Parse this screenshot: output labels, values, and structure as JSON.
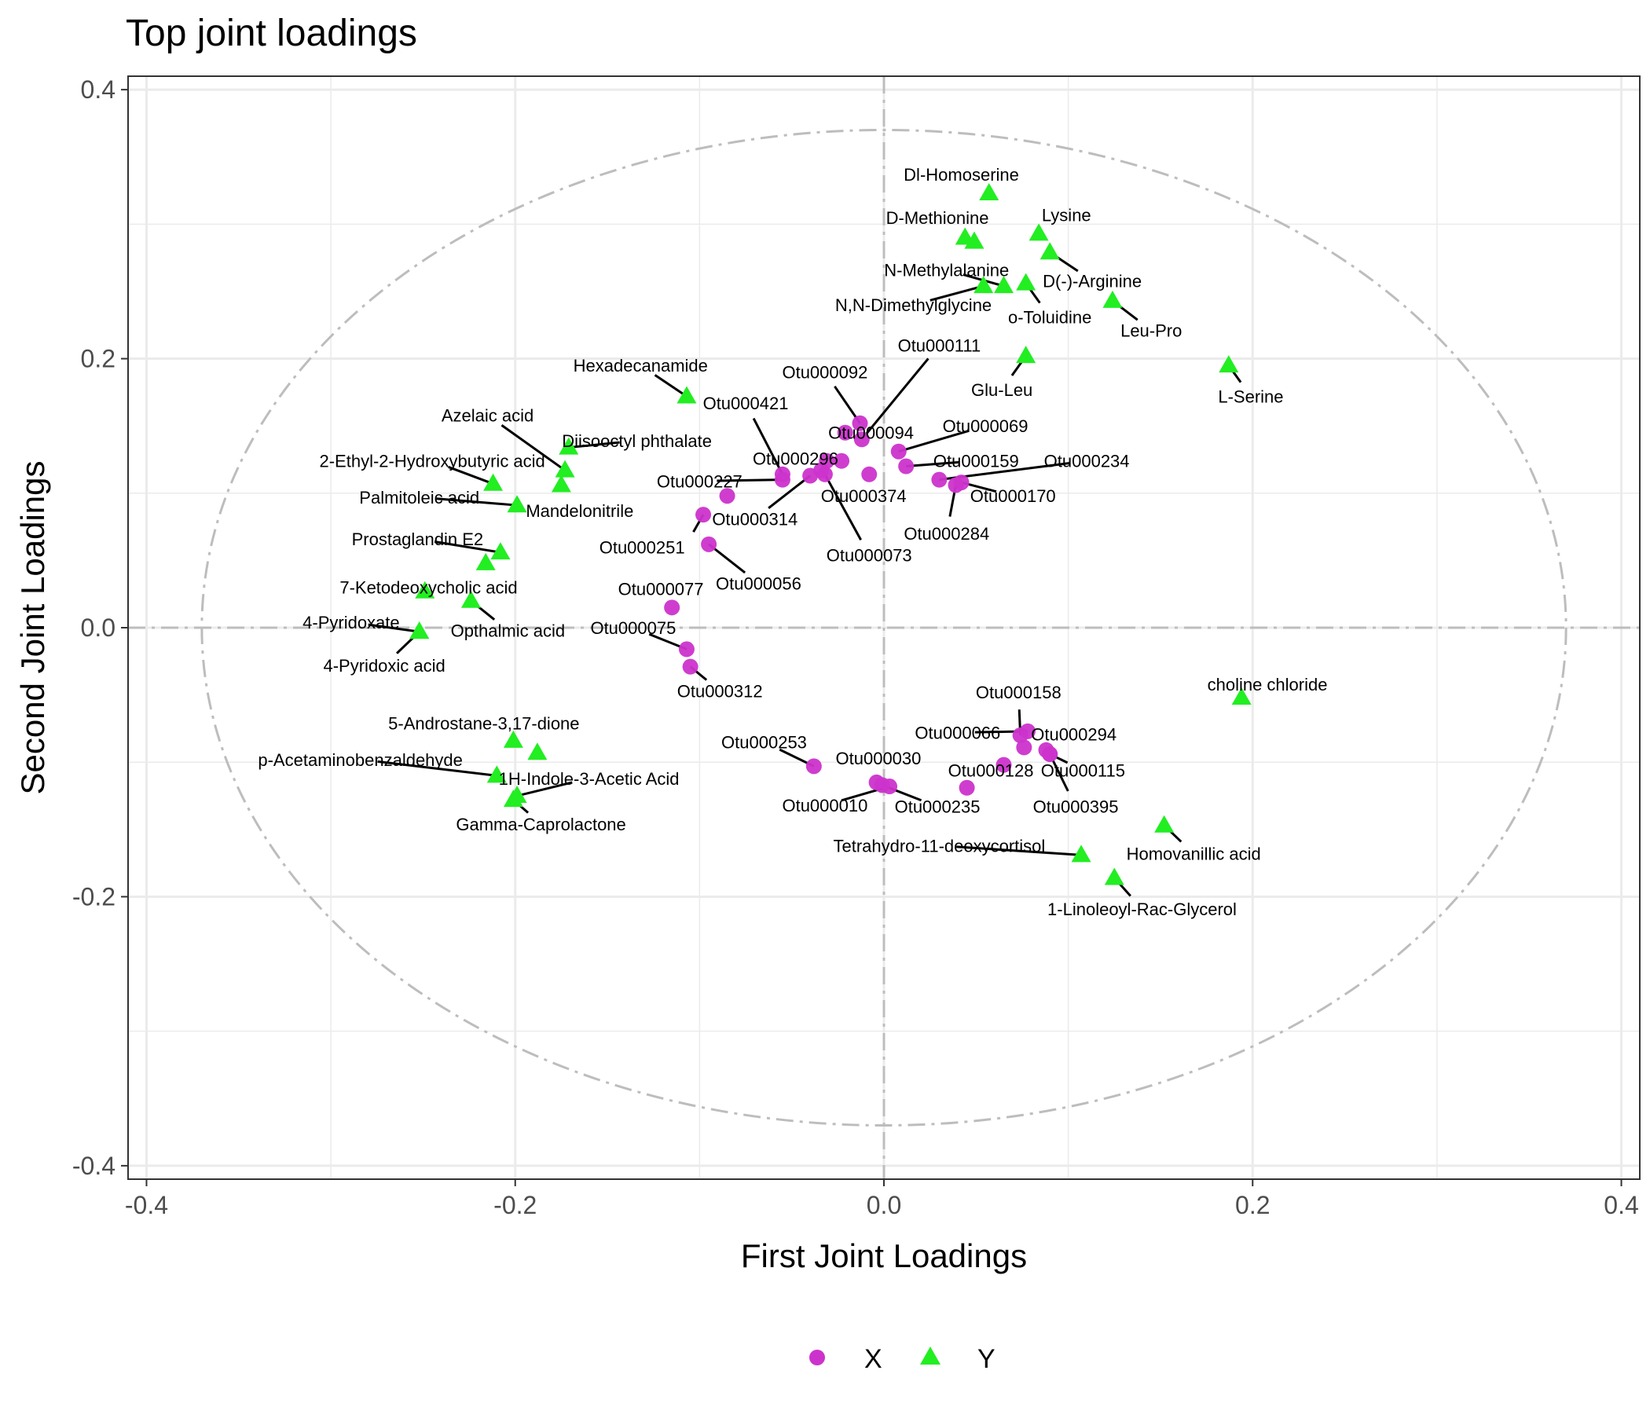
{
  "chart_data": {
    "type": "scatter",
    "title": "Top joint loadings",
    "xlabel": "First Joint Loadings",
    "ylabel": "Second Joint Loadings",
    "xlim": [
      -0.4,
      0.4
    ],
    "ylim": [
      -0.4,
      0.4
    ],
    "x_ticks": [
      {
        "value": -0.4,
        "label": "-0.4"
      },
      {
        "value": -0.2,
        "label": "-0.2"
      },
      {
        "value": 0.0,
        "label": "0.0"
      },
      {
        "value": 0.2,
        "label": "0.2"
      },
      {
        "value": 0.4,
        "label": "0.4"
      }
    ],
    "y_ticks": [
      {
        "value": 0.4,
        "label": "0.4"
      },
      {
        "value": 0.2,
        "label": "0.2"
      },
      {
        "value": 0.0,
        "label": "0.0"
      },
      {
        "value": -0.2,
        "label": "-0.2"
      },
      {
        "value": -0.4,
        "label": "-0.4"
      }
    ],
    "grid": true,
    "legend_position": "bottom",
    "circle_radius": 0.37,
    "colors": {
      "X": "#cc33cc",
      "Y": "#22ee22",
      "grid": "#ebebeb",
      "guide": "#bdbdbd"
    },
    "series": [
      {
        "name": "X",
        "marker": "circle",
        "color": "#cc33cc",
        "points": [
          {
            "x": -0.085,
            "y": 0.098
          },
          {
            "x": -0.098,
            "y": 0.084,
            "label": "Otu000251",
            "lx": -0.108,
            "ly": 0.06,
            "anchor": "end"
          },
          {
            "x": -0.095,
            "y": 0.062,
            "label": "Otu000056",
            "lx": -0.068,
            "ly": 0.033,
            "anchor": "middle"
          },
          {
            "x": -0.115,
            "y": 0.015,
            "label": "Otu000077",
            "lx": -0.121,
            "ly": 0.029,
            "anchor": "middle"
          },
          {
            "x": -0.107,
            "y": -0.016,
            "label": "Otu000075",
            "lx": -0.136,
            "ly": 0.0,
            "anchor": "middle"
          },
          {
            "x": -0.105,
            "y": -0.029,
            "label": "Otu000312",
            "lx": -0.089,
            "ly": -0.047,
            "anchor": "middle"
          },
          {
            "x": -0.055,
            "y": 0.114,
            "label": "Otu000421",
            "lx": -0.075,
            "ly": 0.167,
            "anchor": "middle"
          },
          {
            "x": -0.04,
            "y": 0.113,
            "label": "Otu000314",
            "lx": -0.07,
            "ly": 0.081,
            "anchor": "middle"
          },
          {
            "x": -0.034,
            "y": 0.117,
            "label": "Otu000296",
            "lx": -0.048,
            "ly": 0.126,
            "anchor": "middle"
          },
          {
            "x": -0.031,
            "y": 0.124
          },
          {
            "x": -0.023,
            "y": 0.124
          },
          {
            "x": -0.032,
            "y": 0.114,
            "label": "Otu000073",
            "lx": -0.008,
            "ly": 0.054,
            "anchor": "middle"
          },
          {
            "x": -0.013,
            "y": 0.152,
            "label": "Otu000092",
            "lx": -0.032,
            "ly": 0.19,
            "anchor": "middle"
          },
          {
            "x": -0.008,
            "y": 0.114,
            "label": "Otu000374",
            "lx": -0.011,
            "ly": 0.098,
            "anchor": "middle"
          },
          {
            "x": -0.021,
            "y": 0.145,
            "label": "Otu000094",
            "lx": -0.007,
            "ly": 0.145,
            "anchor": "middle"
          },
          {
            "x": 0.008,
            "y": 0.131,
            "label": "Otu000069",
            "lx": 0.055,
            "ly": 0.15,
            "anchor": "middle"
          },
          {
            "x": 0.039,
            "y": 0.106,
            "label": "Otu000284",
            "lx": 0.034,
            "ly": 0.07,
            "anchor": "middle"
          },
          {
            "x": 0.042,
            "y": 0.108,
            "label": "Otu000170",
            "lx": 0.07,
            "ly": 0.098,
            "anchor": "middle"
          },
          {
            "x": -0.012,
            "y": 0.14,
            "label": "Otu000111",
            "lx": 0.03,
            "ly": 0.21,
            "anchor": "middle"
          },
          {
            "x": 0.012,
            "y": 0.12,
            "label": "Otu000159",
            "lx": 0.05,
            "ly": 0.124,
            "anchor": "middle"
          },
          {
            "x": 0.03,
            "y": 0.11,
            "label": "Otu000234",
            "lx": 0.11,
            "ly": 0.124,
            "anchor": "middle"
          },
          {
            "x": -0.038,
            "y": -0.103,
            "label": "Otu000253",
            "lx": -0.065,
            "ly": -0.085,
            "anchor": "middle"
          },
          {
            "x": -0.004,
            "y": -0.115,
            "label": "Otu000030",
            "lx": -0.003,
            "ly": -0.097,
            "anchor": "middle"
          },
          {
            "x": -0.001,
            "y": -0.117,
            "label": "Otu000235",
            "lx": 0.029,
            "ly": -0.133,
            "anchor": "middle"
          },
          {
            "x": 0.003,
            "y": -0.118,
            "label": "Otu000010",
            "lx": -0.032,
            "ly": -0.132,
            "anchor": "middle"
          },
          {
            "x": 0.045,
            "y": -0.119
          },
          {
            "x": 0.065,
            "y": -0.102,
            "label": "Otu000128",
            "lx": 0.058,
            "ly": -0.106,
            "anchor": "middle"
          },
          {
            "x": 0.074,
            "y": -0.08,
            "label": "Otu000158",
            "lx": 0.073,
            "ly": -0.048,
            "anchor": "middle"
          },
          {
            "x": 0.078,
            "y": -0.077,
            "label": "Otu000066",
            "lx": 0.04,
            "ly": -0.078,
            "anchor": "middle"
          },
          {
            "x": 0.076,
            "y": -0.089
          },
          {
            "x": 0.088,
            "y": -0.091,
            "label": "Otu000294",
            "lx": 0.103,
            "ly": -0.079,
            "anchor": "middle"
          },
          {
            "x": 0.09,
            "y": -0.094,
            "label": "Otu000115",
            "lx": 0.108,
            "ly": -0.106,
            "anchor": "middle"
          },
          {
            "x": 0.09,
            "y": -0.094,
            "label": "Otu000395",
            "lx": 0.104,
            "ly": -0.133,
            "anchor": "middle"
          },
          {
            "x": -0.055,
            "y": 0.11,
            "label": "Otu000227",
            "lx": -0.1,
            "ly": 0.109,
            "anchor": "middle"
          }
        ]
      },
      {
        "name": "Y",
        "marker": "triangle",
        "color": "#22ee22",
        "points": [
          {
            "x": 0.057,
            "y": 0.323,
            "label": "Dl-Homoserine",
            "lx": 0.042,
            "ly": 0.337,
            "anchor": "middle"
          },
          {
            "x": 0.044,
            "y": 0.29,
            "label": "D-Methionine",
            "lx": 0.029,
            "ly": 0.305,
            "anchor": "middle"
          },
          {
            "x": 0.049,
            "y": 0.287
          },
          {
            "x": 0.084,
            "y": 0.293,
            "label": "Lysine",
            "lx": 0.099,
            "ly": 0.307,
            "anchor": "middle"
          },
          {
            "x": 0.09,
            "y": 0.279,
            "label": "D(-)-Arginine",
            "lx": 0.113,
            "ly": 0.258,
            "anchor": "middle"
          },
          {
            "x": 0.065,
            "y": 0.254,
            "label": "N-Methylalanine",
            "lx": 0.034,
            "ly": 0.266,
            "anchor": "middle"
          },
          {
            "x": 0.077,
            "y": 0.256,
            "label": "o-Toluidine",
            "lx": 0.09,
            "ly": 0.231,
            "anchor": "middle"
          },
          {
            "x": 0.124,
            "y": 0.243,
            "label": "Leu-Pro",
            "lx": 0.145,
            "ly": 0.221,
            "anchor": "middle"
          },
          {
            "x": 0.077,
            "y": 0.202,
            "label": "Glu-Leu",
            "lx": 0.064,
            "ly": 0.177,
            "anchor": "middle"
          },
          {
            "x": 0.187,
            "y": 0.195,
            "label": "L-Serine",
            "lx": 0.199,
            "ly": 0.172,
            "anchor": "middle"
          },
          {
            "x": 0.054,
            "y": 0.254,
            "label": "N,N-Dimethylglycine",
            "lx": 0.016,
            "ly": 0.24,
            "anchor": "middle"
          },
          {
            "x": -0.107,
            "y": 0.172,
            "label": "Hexadecanamide",
            "lx": -0.132,
            "ly": 0.195,
            "anchor": "middle"
          },
          {
            "x": -0.171,
            "y": 0.134,
            "label": "Diisooctyl phthalate",
            "lx": -0.134,
            "ly": 0.139,
            "anchor": "middle"
          },
          {
            "x": -0.173,
            "y": 0.117,
            "label": "Azelaic acid",
            "lx": -0.215,
            "ly": 0.158,
            "anchor": "middle"
          },
          {
            "x": -0.175,
            "y": 0.106,
            "label": "Mandelonitrile",
            "lx": -0.165,
            "ly": 0.087,
            "anchor": "middle"
          },
          {
            "x": -0.212,
            "y": 0.107,
            "label": "2-Ethyl-2-Hydroxybutyric acid",
            "lx": -0.245,
            "ly": 0.124,
            "anchor": "middle"
          },
          {
            "x": -0.199,
            "y": 0.091,
            "label": "Palmitoleic acid",
            "lx": -0.252,
            "ly": 0.097,
            "anchor": "middle"
          },
          {
            "x": -0.208,
            "y": 0.056,
            "label": "Prostaglandin E2",
            "lx": -0.253,
            "ly": 0.066,
            "anchor": "middle"
          },
          {
            "x": -0.216,
            "y": 0.048
          },
          {
            "x": -0.249,
            "y": 0.027,
            "label": "7-Ketodeoxycholic acid",
            "lx": -0.247,
            "ly": 0.03,
            "anchor": "middle"
          },
          {
            "x": -0.224,
            "y": 0.02,
            "label": "Opthalmic acid",
            "lx": -0.204,
            "ly": -0.002,
            "anchor": "middle"
          },
          {
            "x": -0.252,
            "y": -0.003,
            "label": "4-Pyridoxate",
            "lx": -0.289,
            "ly": 0.004,
            "anchor": "middle"
          },
          {
            "x": -0.252,
            "y": -0.003,
            "label": "4-Pyridoxic acid",
            "lx": -0.271,
            "ly": -0.028,
            "anchor": "middle"
          },
          {
            "x": -0.201,
            "y": -0.084,
            "label": "5-Androstane-3,17-dione",
            "lx": -0.217,
            "ly": -0.071,
            "anchor": "middle"
          },
          {
            "x": -0.188,
            "y": -0.093
          },
          {
            "x": -0.21,
            "y": -0.11,
            "label": "p-Acetaminobenzaldehyde",
            "lx": -0.284,
            "ly": -0.098,
            "anchor": "middle"
          },
          {
            "x": -0.199,
            "y": -0.125,
            "label": "1H-Indole-3-Acetic Acid",
            "lx": -0.16,
            "ly": -0.112,
            "anchor": "middle"
          },
          {
            "x": -0.201,
            "y": -0.128,
            "label": "Gamma-Caprolactone",
            "lx": -0.186,
            "ly": -0.146,
            "anchor": "middle"
          },
          {
            "x": 0.194,
            "y": -0.052,
            "label": "choline chloride",
            "lx": 0.208,
            "ly": -0.042,
            "anchor": "middle"
          },
          {
            "x": 0.152,
            "y": -0.147,
            "label": "Homovanillic acid",
            "lx": 0.168,
            "ly": -0.168,
            "anchor": "middle"
          },
          {
            "x": 0.107,
            "y": -0.169,
            "label": "Tetrahydro-11-deoxycortisol",
            "lx": 0.03,
            "ly": -0.162,
            "anchor": "middle"
          },
          {
            "x": 0.125,
            "y": -0.186,
            "label": "1-Linoleoyl-Rac-Glycerol",
            "lx": 0.14,
            "ly": -0.209,
            "anchor": "middle"
          }
        ]
      }
    ]
  }
}
